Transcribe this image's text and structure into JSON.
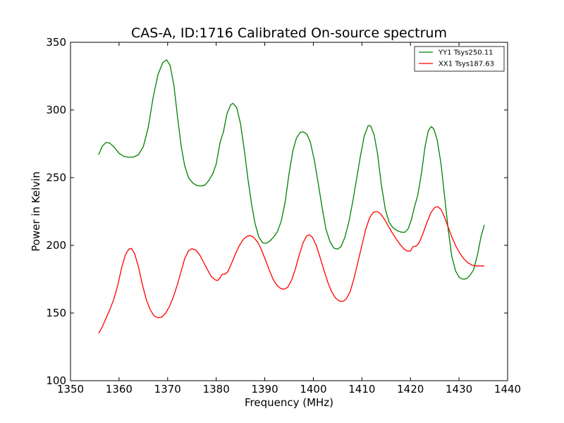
{
  "chart_data": {
    "type": "line",
    "title": "CAS-A, ID:1716 Calibrated On-source spectrum",
    "xlabel": "Frequency (MHz)",
    "ylabel": "Power in Kelvin",
    "xlim": [
      1350,
      1440
    ],
    "ylim": [
      100,
      350
    ],
    "xticks": [
      1350,
      1360,
      1370,
      1380,
      1390,
      1400,
      1410,
      1420,
      1430,
      1440
    ],
    "yticks": [
      100,
      150,
      200,
      250,
      300,
      350
    ],
    "grid": false,
    "legend_position": "top-right",
    "series": [
      {
        "name": "YY1 Tsys250.11",
        "color": "#008000",
        "points": [
          [
            1355.8,
            267
          ],
          [
            1356.5,
            273
          ],
          [
            1357.3,
            276
          ],
          [
            1358.1,
            275.5
          ],
          [
            1359.0,
            272.5
          ],
          [
            1360.0,
            268
          ],
          [
            1361.0,
            265.7
          ],
          [
            1362.0,
            265.1
          ],
          [
            1363.0,
            265.2
          ],
          [
            1364.0,
            267
          ],
          [
            1365.0,
            273
          ],
          [
            1366.0,
            287
          ],
          [
            1367.0,
            309
          ],
          [
            1368.0,
            326
          ],
          [
            1369.0,
            335
          ],
          [
            1369.8,
            337
          ],
          [
            1370.5,
            333
          ],
          [
            1371.3,
            318
          ],
          [
            1372.0,
            296
          ],
          [
            1372.8,
            273
          ],
          [
            1373.5,
            259
          ],
          [
            1374.3,
            250
          ],
          [
            1375.2,
            246
          ],
          [
            1376.0,
            244.2
          ],
          [
            1376.8,
            243.8
          ],
          [
            1377.7,
            244.5
          ],
          [
            1378.5,
            248
          ],
          [
            1379.3,
            253
          ],
          [
            1380.0,
            260
          ],
          [
            1380.8,
            276
          ],
          [
            1381.5,
            284
          ],
          [
            1382.2,
            297
          ],
          [
            1383.0,
            304
          ],
          [
            1383.5,
            304.8
          ],
          [
            1384.2,
            302
          ],
          [
            1385.0,
            290
          ],
          [
            1385.8,
            270
          ],
          [
            1386.5,
            250
          ],
          [
            1387.3,
            230
          ],
          [
            1388.0,
            216
          ],
          [
            1388.8,
            206
          ],
          [
            1389.6,
            201.8
          ],
          [
            1390.3,
            201.5
          ],
          [
            1391.0,
            203
          ],
          [
            1391.8,
            206
          ],
          [
            1392.6,
            210
          ],
          [
            1393.4,
            218
          ],
          [
            1394.2,
            232
          ],
          [
            1395.0,
            253
          ],
          [
            1395.8,
            270
          ],
          [
            1396.5,
            279
          ],
          [
            1397.3,
            283.5
          ],
          [
            1398.0,
            283.8
          ],
          [
            1398.7,
            282
          ],
          [
            1399.4,
            276
          ],
          [
            1400.2,
            263
          ],
          [
            1401.0,
            246
          ],
          [
            1401.8,
            228
          ],
          [
            1402.6,
            212
          ],
          [
            1403.4,
            203
          ],
          [
            1404.2,
            198
          ],
          [
            1405.0,
            197.2
          ],
          [
            1405.7,
            199
          ],
          [
            1406.5,
            206
          ],
          [
            1407.3,
            217
          ],
          [
            1408.1,
            232
          ],
          [
            1408.9,
            249
          ],
          [
            1409.7,
            266
          ],
          [
            1410.5,
            281
          ],
          [
            1411.3,
            288.5
          ],
          [
            1411.8,
            288.2
          ],
          [
            1412.5,
            282
          ],
          [
            1413.2,
            268
          ],
          [
            1414.0,
            245
          ],
          [
            1414.8,
            227
          ],
          [
            1415.6,
            217
          ],
          [
            1416.4,
            213
          ],
          [
            1417.2,
            211
          ],
          [
            1418.0,
            209.8
          ],
          [
            1418.8,
            209.6
          ],
          [
            1419.5,
            212
          ],
          [
            1420.2,
            219
          ],
          [
            1420.8,
            228
          ],
          [
            1421.5,
            237
          ],
          [
            1422.3,
            254
          ],
          [
            1423.0,
            273
          ],
          [
            1423.7,
            285
          ],
          [
            1424.3,
            287.8
          ],
          [
            1424.8,
            286
          ],
          [
            1425.5,
            278
          ],
          [
            1426.3,
            260
          ],
          [
            1427.0,
            237
          ],
          [
            1427.8,
            211
          ],
          [
            1428.5,
            192
          ],
          [
            1429.3,
            181
          ],
          [
            1430.0,
            176.5
          ],
          [
            1430.7,
            175
          ],
          [
            1431.5,
            175.3
          ],
          [
            1432.2,
            177.5
          ],
          [
            1433.0,
            182
          ],
          [
            1433.8,
            193
          ],
          [
            1434.5,
            206
          ],
          [
            1435.2,
            215
          ]
        ]
      },
      {
        "name": "XX1 Tsys187.63",
        "color": "#ff0000",
        "points": [
          [
            1355.8,
            135
          ],
          [
            1356.5,
            139.5
          ],
          [
            1357.3,
            146
          ],
          [
            1358.1,
            152.5
          ],
          [
            1358.9,
            160
          ],
          [
            1359.7,
            170
          ],
          [
            1360.5,
            183
          ],
          [
            1361.3,
            193
          ],
          [
            1362.0,
            197.2
          ],
          [
            1362.5,
            197.8
          ],
          [
            1363.2,
            194
          ],
          [
            1364.0,
            184
          ],
          [
            1364.8,
            171
          ],
          [
            1365.6,
            160
          ],
          [
            1366.4,
            152.5
          ],
          [
            1367.2,
            148
          ],
          [
            1368.0,
            146.5
          ],
          [
            1368.8,
            147
          ],
          [
            1369.6,
            150
          ],
          [
            1370.4,
            155
          ],
          [
            1371.2,
            162
          ],
          [
            1372.0,
            171
          ],
          [
            1372.8,
            181
          ],
          [
            1373.5,
            190
          ],
          [
            1374.3,
            196
          ],
          [
            1375.0,
            197.5
          ],
          [
            1375.8,
            196.5
          ],
          [
            1376.6,
            193
          ],
          [
            1377.4,
            187.5
          ],
          [
            1378.2,
            182
          ],
          [
            1379.0,
            177
          ],
          [
            1379.8,
            174.5
          ],
          [
            1380.3,
            174
          ],
          [
            1380.8,
            176
          ],
          [
            1381.2,
            178.5
          ],
          [
            1381.8,
            178.8
          ],
          [
            1382.4,
            180.5
          ],
          [
            1383.2,
            187
          ],
          [
            1384.0,
            194
          ],
          [
            1384.8,
            200
          ],
          [
            1385.6,
            204.5
          ],
          [
            1386.4,
            206.8
          ],
          [
            1387.0,
            207.2
          ],
          [
            1387.7,
            206
          ],
          [
            1388.5,
            202.5
          ],
          [
            1389.3,
            197
          ],
          [
            1390.1,
            189.5
          ],
          [
            1390.9,
            182
          ],
          [
            1391.7,
            175
          ],
          [
            1392.5,
            170.5
          ],
          [
            1393.3,
            168
          ],
          [
            1394.0,
            167.6
          ],
          [
            1394.7,
            169
          ],
          [
            1395.5,
            174
          ],
          [
            1396.3,
            182.5
          ],
          [
            1397.1,
            193
          ],
          [
            1397.9,
            202
          ],
          [
            1398.6,
            206.8
          ],
          [
            1399.2,
            207.8
          ],
          [
            1399.8,
            206
          ],
          [
            1400.6,
            200
          ],
          [
            1401.4,
            191
          ],
          [
            1402.2,
            181.5
          ],
          [
            1403.0,
            172.5
          ],
          [
            1403.8,
            165.5
          ],
          [
            1404.6,
            161
          ],
          [
            1405.4,
            158.8
          ],
          [
            1406.1,
            158.6
          ],
          [
            1406.8,
            160.5
          ],
          [
            1407.6,
            166
          ],
          [
            1408.4,
            176
          ],
          [
            1409.2,
            188
          ],
          [
            1410.0,
            200
          ],
          [
            1410.8,
            212
          ],
          [
            1411.6,
            220.5
          ],
          [
            1412.4,
            224.5
          ],
          [
            1413.1,
            225
          ],
          [
            1413.8,
            223.5
          ],
          [
            1414.6,
            219.5
          ],
          [
            1415.4,
            214.5
          ],
          [
            1416.2,
            209.5
          ],
          [
            1417.0,
            205
          ],
          [
            1417.8,
            201
          ],
          [
            1418.6,
            197.5
          ],
          [
            1419.3,
            195.8
          ],
          [
            1420.0,
            195.8
          ],
          [
            1420.5,
            199
          ],
          [
            1421.2,
            199.5
          ],
          [
            1421.8,
            202
          ],
          [
            1422.6,
            209
          ],
          [
            1423.4,
            217
          ],
          [
            1424.2,
            224
          ],
          [
            1425.0,
            228
          ],
          [
            1425.6,
            228.6
          ],
          [
            1426.3,
            226.5
          ],
          [
            1427.0,
            221
          ],
          [
            1427.8,
            213
          ],
          [
            1428.6,
            205.5
          ],
          [
            1429.4,
            199
          ],
          [
            1430.2,
            194
          ],
          [
            1431.0,
            190
          ],
          [
            1431.8,
            187.2
          ],
          [
            1432.6,
            185.5
          ],
          [
            1433.4,
            184.8
          ],
          [
            1434.3,
            184.8
          ],
          [
            1435.2,
            184.8
          ]
        ]
      }
    ]
  }
}
